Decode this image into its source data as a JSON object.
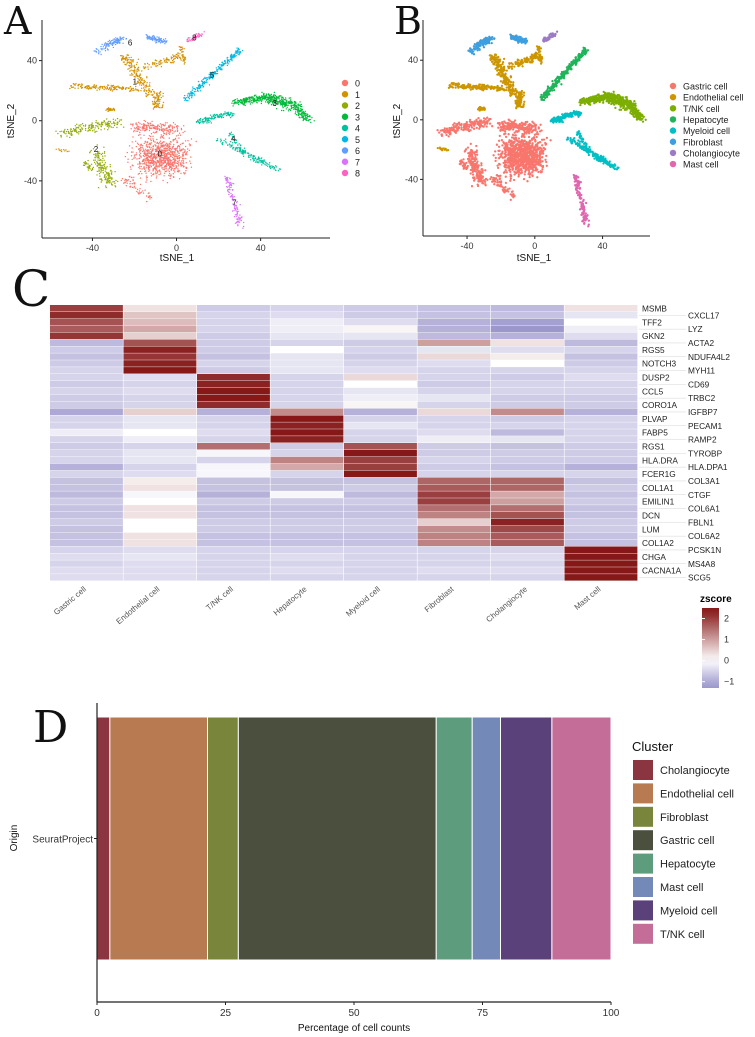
{
  "panels": {
    "a": "A",
    "b": "B",
    "c": "C",
    "d": "D"
  },
  "chart_data": [
    {
      "id": "A",
      "type": "scatter",
      "xlabel": "tSNE_1",
      "ylabel": "tSNE_2",
      "xlim": [
        -64,
        73
      ],
      "ylim": [
        -78,
        67
      ],
      "xticks": [
        -40,
        0,
        40
      ],
      "yticks": [
        -40,
        0,
        40
      ],
      "legend_position": "right",
      "clusters": [
        {
          "label": "0",
          "color": "#F8766D",
          "segments": [
            [
              -7,
              -24,
              -7,
              -24,
              20,
              1100
            ],
            [
              -20,
              -4,
              2,
              -6,
              6,
              250
            ],
            [
              -25,
              -38,
              -12,
              -52,
              5,
              80
            ]
          ]
        },
        {
          "label": "1",
          "color": "#D39200",
          "segments": [
            [
              -50,
              23,
              -18,
              21,
              3,
              200
            ],
            [
              -25,
              44,
              -12,
              16,
              5,
              250
            ],
            [
              -16,
              36,
              3,
              43,
              4,
              120
            ],
            [
              -10,
              9,
              -8,
              18,
              4,
              90
            ],
            [
              -33,
              7,
              -30,
              8,
              2,
              40
            ],
            [
              2,
              50,
              4,
              38,
              2,
              40
            ],
            [
              -57,
              -19,
              -52,
              -20,
              1.5,
              15
            ]
          ]
        },
        {
          "label": "2",
          "color": "#93AA00",
          "segments": [
            [
              -55,
              -8,
              -27,
              -1,
              5,
              220
            ],
            [
              -38,
              -20,
              -32,
              -42,
              6,
              220
            ],
            [
              -44,
              -28,
              -40,
              -32,
              3,
              40
            ]
          ]
        },
        {
          "label": "3",
          "color": "#00BA38",
          "segments": [
            [
              28,
              12,
              43,
              16,
              4,
              250
            ],
            [
              43,
              16,
              56,
              10,
              6,
              300
            ],
            [
              56,
              10,
              63,
              0,
              4,
              150
            ]
          ]
        },
        {
          "label": "4",
          "color": "#00C19F",
          "segments": [
            [
              10,
              -1,
              26,
              5,
              3,
              160
            ],
            [
              20,
              -12,
              48,
              -33,
              3,
              200
            ],
            [
              25,
              -8,
              32,
              -20,
              2,
              40
            ]
          ]
        },
        {
          "label": "5",
          "color": "#00B9E3",
          "segments": [
            [
              4,
              14,
              30,
              47,
              3,
              320
            ]
          ]
        },
        {
          "label": "6",
          "color": "#619CFF",
          "segments": [
            [
              -38,
              46,
              -26,
              55,
              4,
              140
            ],
            [
              -14,
              56,
              -5,
              52,
              3,
              110
            ]
          ]
        },
        {
          "label": "7",
          "color": "#DB72FB",
          "segments": [
            [
              24,
              -38,
              31,
              -71,
              3,
              150
            ]
          ]
        },
        {
          "label": "8",
          "color": "#FF61C3",
          "segments": [
            [
              5,
              53,
              12,
              58,
              2,
              60
            ]
          ]
        }
      ]
    },
    {
      "id": "B",
      "type": "scatter",
      "xlabel": "tSNE_1",
      "ylabel": "tSNE_2",
      "xlim": [
        -66,
        68
      ],
      "ylim": [
        -78,
        67
      ],
      "xticks": [
        -40,
        0,
        40
      ],
      "yticks": [
        -40,
        0,
        40
      ],
      "legend_position": "right",
      "legend": [
        {
          "label": "Gastric cell",
          "color": "#F8766D",
          "from_clusters": [
            "0",
            "2"
          ]
        },
        {
          "label": "Endothelial cell",
          "color": "#CD9600",
          "from_clusters": [
            "1"
          ]
        },
        {
          "label": "T/NK cell",
          "color": "#7CAE00",
          "from_clusters": [
            "3"
          ]
        },
        {
          "label": "Hepatocyte",
          "color": "#1FB45A",
          "from_clusters": [
            "5"
          ]
        },
        {
          "label": "Myeloid cell",
          "color": "#00BFC4",
          "from_clusters": [
            "4"
          ]
        },
        {
          "label": "Fibroblast",
          "color": "#3D9FE0",
          "from_clusters": [
            "6"
          ]
        },
        {
          "label": "Cholangiocyte",
          "color": "#9C7BC4",
          "from_clusters": [
            "8"
          ]
        },
        {
          "label": "Mast cell",
          "color": "#E066AE",
          "from_clusters": [
            "7"
          ]
        }
      ]
    },
    {
      "id": "C",
      "type": "heatmap",
      "columns": [
        "Gastric cell",
        "Endothelial cell",
        "T/NK cell",
        "Hepatocyte",
        "Myeloid cell",
        "Fibroblast",
        "Cholangiocyte",
        "Mast cell"
      ],
      "rows": [
        "MSMB",
        "CXCL17",
        "TFF2",
        "LYZ",
        "GKN2",
        "ACTA2",
        "RGS5",
        "NDUFA4L2",
        "NOTCH3",
        "MYH11",
        "DUSP2",
        "CD69",
        "CCL5",
        "TRBC2",
        "CORO1A",
        "IGFBP7",
        "PLVAP",
        "PECAM1",
        "FABP5",
        "RAMP2",
        "RGS1",
        "TYROBP",
        "HLA.DRA",
        "HLA.DPA1",
        "FCER1G",
        "COL3A1",
        "COL1A1",
        "CTGF",
        "EMILIN1",
        "COL6A1",
        "DCN",
        "FBLN1",
        "LUM",
        "COL6A2",
        "COL1A2",
        "PCSK1N",
        "CHGA",
        "MS4A8",
        "CACNA1A",
        "SCG5"
      ],
      "values": [
        [
          2.0,
          0.3,
          -0.6,
          -0.5,
          -0.6,
          -0.7,
          -0.8,
          0.3
        ],
        [
          2.2,
          0.6,
          -0.5,
          -0.4,
          -0.6,
          -0.7,
          -0.7,
          -0.3
        ],
        [
          1.8,
          0.7,
          -0.5,
          -0.2,
          -0.4,
          -0.9,
          -1.1,
          0.0
        ],
        [
          1.7,
          0.9,
          -0.5,
          -0.2,
          0.1,
          -0.9,
          -1.2,
          -0.2
        ],
        [
          2.1,
          0.5,
          -0.6,
          -0.3,
          -0.3,
          -0.8,
          -0.9,
          -0.4
        ],
        [
          -0.8,
          1.8,
          -0.6,
          -0.5,
          -0.6,
          1.0,
          0.3,
          -0.8
        ],
        [
          -0.6,
          2.3,
          -0.6,
          0.0,
          -0.5,
          -0.3,
          -0.4,
          -0.5
        ],
        [
          -0.7,
          2.1,
          -0.7,
          -0.3,
          -0.6,
          0.4,
          0.2,
          -0.7
        ],
        [
          -0.6,
          2.3,
          -0.5,
          -0.3,
          -0.5,
          -0.4,
          0.0,
          -0.6
        ],
        [
          -0.5,
          2.4,
          -0.6,
          -0.3,
          -0.4,
          -0.5,
          -0.5,
          -0.5
        ],
        [
          -0.5,
          -0.4,
          2.2,
          -0.5,
          0.4,
          -0.5,
          -0.6,
          -0.4
        ],
        [
          -0.6,
          -0.5,
          2.3,
          -0.5,
          0.0,
          -0.6,
          -0.5,
          -0.5
        ],
        [
          -0.5,
          -0.4,
          2.4,
          -0.5,
          -0.3,
          -0.5,
          -0.5,
          -0.5
        ],
        [
          -0.6,
          -0.5,
          2.4,
          -0.5,
          -0.2,
          -0.3,
          -0.6,
          -0.6
        ],
        [
          -0.6,
          -0.5,
          2.2,
          -0.5,
          0.1,
          -0.5,
          -0.6,
          -0.6
        ],
        [
          -1.0,
          0.5,
          -0.9,
          1.2,
          -0.9,
          0.4,
          1.2,
          -0.9
        ],
        [
          -0.5,
          -0.3,
          -0.5,
          2.4,
          -0.5,
          -0.5,
          -0.6,
          -0.5
        ],
        [
          -0.5,
          -0.3,
          -0.5,
          2.3,
          -0.3,
          -0.5,
          -0.5,
          -0.5
        ],
        [
          -0.2,
          0.0,
          -0.4,
          2.4,
          -0.5,
          -0.4,
          -0.8,
          -0.5
        ],
        [
          -0.5,
          -0.2,
          -0.5,
          2.3,
          -0.5,
          -0.2,
          -0.3,
          -0.5
        ],
        [
          -0.6,
          -0.5,
          1.5,
          -0.6,
          1.8,
          -0.6,
          -0.7,
          -0.6
        ],
        [
          -0.5,
          -0.3,
          -0.1,
          -0.5,
          2.4,
          -0.6,
          -0.6,
          -0.6
        ],
        [
          -0.5,
          -0.3,
          -0.5,
          1.3,
          2.0,
          -0.5,
          -0.6,
          -0.6
        ],
        [
          -0.9,
          -0.5,
          -0.1,
          0.9,
          2.0,
          -0.6,
          -0.7,
          -0.9
        ],
        [
          -0.5,
          -0.4,
          -0.1,
          -0.5,
          2.4,
          -0.5,
          -0.5,
          -0.5
        ],
        [
          -0.7,
          0.2,
          -0.7,
          -0.7,
          -0.7,
          1.6,
          1.6,
          -0.7
        ],
        [
          -0.7,
          0.3,
          -0.7,
          -0.7,
          -0.6,
          1.7,
          1.6,
          -0.6
        ],
        [
          -0.8,
          -0.1,
          -0.9,
          -0.1,
          -0.8,
          2.0,
          0.9,
          -0.7
        ],
        [
          -0.6,
          0.0,
          -0.6,
          -0.6,
          -0.6,
          2.0,
          1.0,
          -0.6
        ],
        [
          -0.7,
          0.3,
          -0.7,
          -0.7,
          -0.7,
          1.5,
          1.5,
          -0.7
        ],
        [
          -0.7,
          0.3,
          -0.7,
          -0.7,
          -0.7,
          1.3,
          1.8,
          -0.7
        ],
        [
          -0.6,
          0.0,
          -0.6,
          -0.6,
          -0.6,
          0.5,
          2.3,
          -0.6
        ],
        [
          -0.7,
          0.0,
          -0.6,
          -0.6,
          -0.6,
          1.2,
          1.9,
          -0.6
        ],
        [
          -0.7,
          0.3,
          -0.7,
          -0.7,
          -0.7,
          1.3,
          1.7,
          -0.7
        ],
        [
          -0.7,
          0.3,
          -0.7,
          -0.7,
          -0.7,
          1.3,
          1.7,
          -0.7
        ],
        [
          -0.5,
          -0.4,
          -0.5,
          -0.5,
          -0.5,
          -0.5,
          -0.5,
          2.4
        ],
        [
          -0.4,
          -0.3,
          -0.5,
          -0.4,
          -0.5,
          -0.5,
          -0.4,
          2.4
        ],
        [
          -0.5,
          -0.4,
          -0.5,
          -0.5,
          -0.5,
          -0.5,
          -0.5,
          2.4
        ],
        [
          -0.4,
          -0.4,
          -0.5,
          -0.4,
          -0.5,
          -0.4,
          -0.4,
          2.4
        ],
        [
          -0.4,
          -0.4,
          -0.5,
          -0.5,
          -0.5,
          -0.5,
          -0.5,
          2.4
        ]
      ],
      "legend_title": "zscore",
      "legend_ticks": [
        2,
        1,
        0,
        -1
      ],
      "color_range": [
        -1.3,
        2.5
      ],
      "colors": {
        "low": "#9C97CC",
        "mid": "#FFFFFF",
        "high": "#861818"
      }
    },
    {
      "id": "D",
      "type": "bar",
      "orientation": "horizontal-stacked",
      "ylabel": "Origin",
      "xlabel": "Percentage of cell counts",
      "categories": [
        "SeuratProject"
      ],
      "xlim": [
        0,
        100
      ],
      "xticks": [
        0,
        25,
        50,
        75,
        100
      ],
      "legend_title": "Cluster",
      "legend_position": "right",
      "series": [
        {
          "name": "Cholangiocyte",
          "values": [
            2.5
          ],
          "color": "#8A3540"
        },
        {
          "name": "Endothelial cell",
          "values": [
            19.0
          ],
          "color": "#B87A50"
        },
        {
          "name": "Fibroblast",
          "values": [
            6.0
          ],
          "color": "#78853A"
        },
        {
          "name": "Gastric cell",
          "values": [
            38.5
          ],
          "color": "#4A503D"
        },
        {
          "name": "Hepatocyte",
          "values": [
            7.0
          ],
          "color": "#5E9C7E"
        },
        {
          "name": "Mast cell",
          "values": [
            5.5
          ],
          "color": "#7389B8"
        },
        {
          "name": "Myeloid cell",
          "values": [
            10.0
          ],
          "color": "#5B4179"
        },
        {
          "name": "T/NK cell",
          "values": [
            11.5
          ],
          "color": "#C46D98"
        }
      ]
    }
  ]
}
